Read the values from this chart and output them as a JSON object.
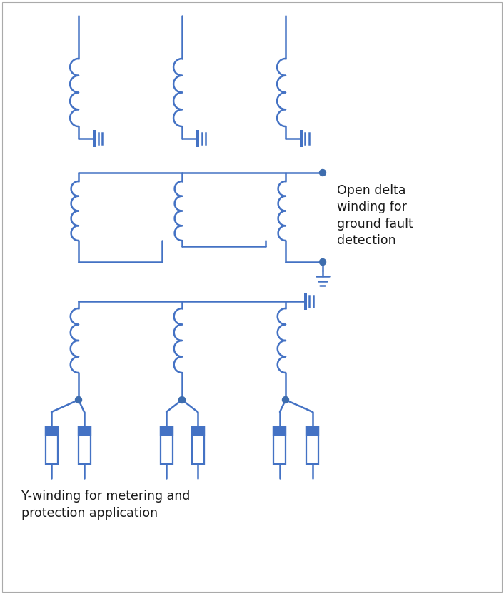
{
  "line_color": "#4472C4",
  "dot_color": "#3E6DAE",
  "bg_color": "#FFFFFF",
  "text_color": "#1A1A1A",
  "line_width": 1.8,
  "open_delta_label": "Open delta\nwinding for\nground fault\ndetection",
  "y_winding_label": "Y-winding for metering and\nprotection application",
  "figsize": [
    7.06,
    8.32
  ],
  "dpi": 100
}
